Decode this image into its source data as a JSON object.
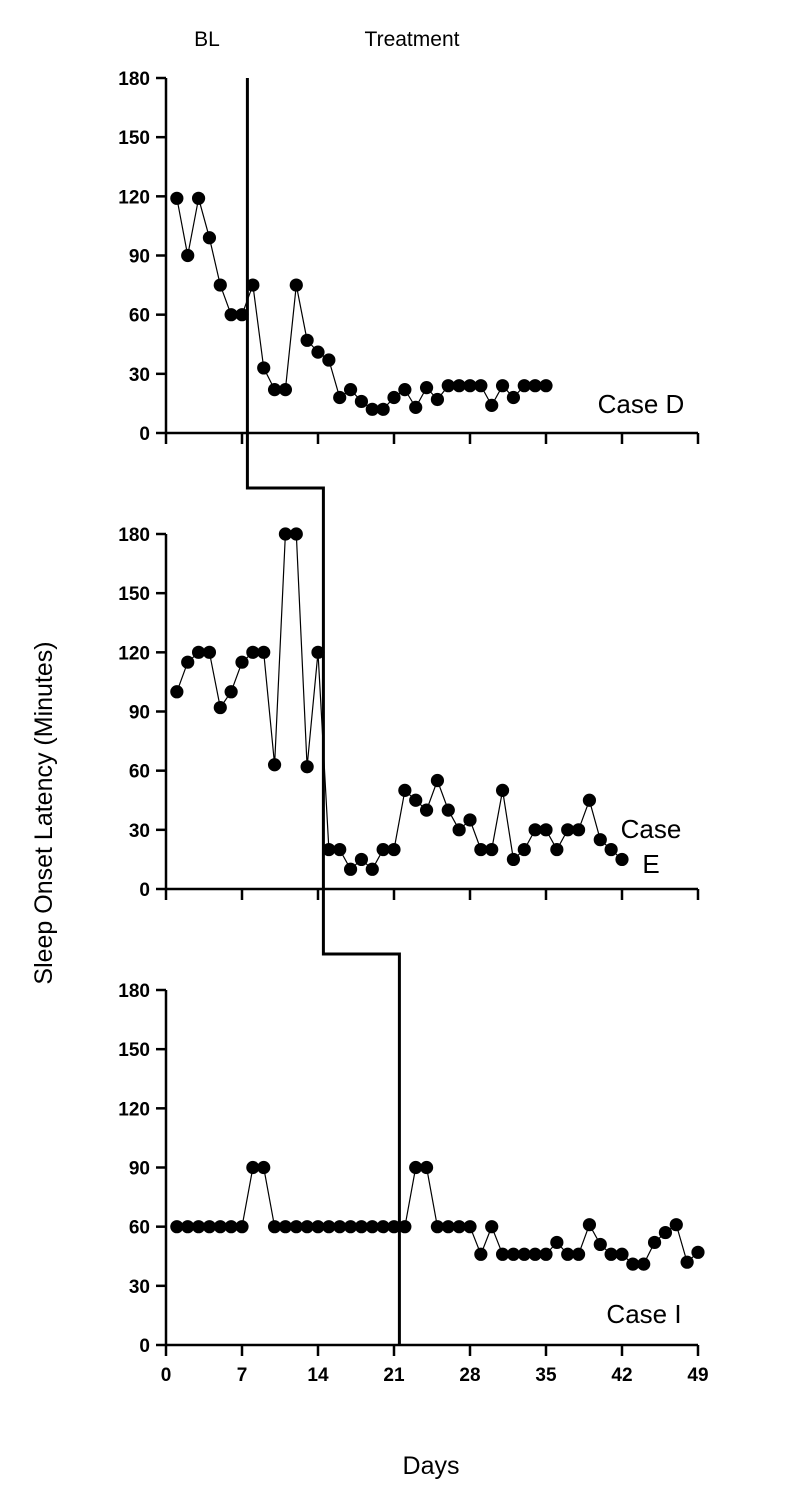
{
  "chart_data": {
    "type": "line",
    "phase_labels": [
      "BL",
      "Treatment"
    ],
    "ylabel": "Sleep Onset Latency (Minutes)",
    "xlabel": "Days",
    "x_ticks": [
      0,
      7,
      14,
      21,
      28,
      35,
      42,
      49
    ],
    "y_ticks": [
      0,
      30,
      60,
      90,
      120,
      150,
      180
    ],
    "xlim": [
      0,
      49
    ],
    "ylim": [
      0,
      180
    ],
    "marker_color": "#000000",
    "panels": [
      {
        "name": "Case D",
        "case_label_lines": [
          "Case D"
        ],
        "phase_change_after_day": 7.5,
        "x_axis_to": 49,
        "x": [
          1,
          2,
          3,
          4,
          5,
          6,
          7,
          8,
          9,
          10,
          11,
          12,
          13,
          14,
          15,
          16,
          17,
          18,
          19,
          20,
          21,
          22,
          23,
          24,
          25,
          26,
          27,
          28,
          29,
          30,
          31,
          32,
          33,
          34,
          35
        ],
        "values": [
          119,
          90,
          119,
          99,
          75,
          60,
          60,
          75,
          33,
          22,
          22,
          75,
          47,
          41,
          37,
          18,
          22,
          16,
          12,
          12,
          18,
          22,
          13,
          23,
          17,
          24,
          24,
          24,
          24,
          14,
          24,
          18,
          24,
          24,
          24
        ]
      },
      {
        "name": "Case E",
        "case_label_lines": [
          "Case",
          "E"
        ],
        "phase_change_after_day": 14.5,
        "x_axis_to": 49,
        "x": [
          1,
          2,
          3,
          4,
          5,
          6,
          7,
          8,
          9,
          10,
          11,
          12,
          13,
          14,
          15,
          16,
          17,
          18,
          19,
          20,
          21,
          22,
          23,
          24,
          25,
          26,
          27,
          28,
          29,
          30,
          31,
          32,
          33,
          34,
          35,
          36,
          37,
          38,
          39,
          40,
          41,
          42
        ],
        "values": [
          100,
          115,
          120,
          120,
          92,
          100,
          115,
          120,
          120,
          63,
          180,
          180,
          62,
          120,
          20,
          20,
          10,
          15,
          10,
          20,
          20,
          50,
          45,
          40,
          55,
          40,
          30,
          35,
          20,
          20,
          50,
          15,
          20,
          30,
          30,
          20,
          30,
          30,
          45,
          25,
          20,
          15
        ]
      },
      {
        "name": "Case I",
        "case_label_lines": [
          "Case I"
        ],
        "phase_change_after_day": 21.5,
        "x_axis_to": 49,
        "x": [
          1,
          2,
          3,
          4,
          5,
          6,
          7,
          8,
          9,
          10,
          11,
          12,
          13,
          14,
          15,
          16,
          17,
          18,
          19,
          20,
          21,
          22,
          23,
          24,
          25,
          26,
          27,
          28,
          29,
          30,
          31,
          32,
          33,
          34,
          35,
          36,
          37,
          38,
          39,
          40,
          41,
          42,
          43,
          44,
          45,
          46,
          47,
          48,
          49
        ],
        "values": [
          60,
          60,
          60,
          60,
          60,
          60,
          60,
          90,
          90,
          60,
          60,
          60,
          60,
          60,
          60,
          60,
          60,
          60,
          60,
          60,
          60,
          60,
          90,
          90,
          60,
          60,
          60,
          60,
          46,
          60,
          46,
          46,
          46,
          46,
          46,
          52,
          46,
          46,
          61,
          51,
          46,
          46,
          41,
          41,
          52,
          57,
          61,
          42,
          47
        ]
      }
    ]
  }
}
